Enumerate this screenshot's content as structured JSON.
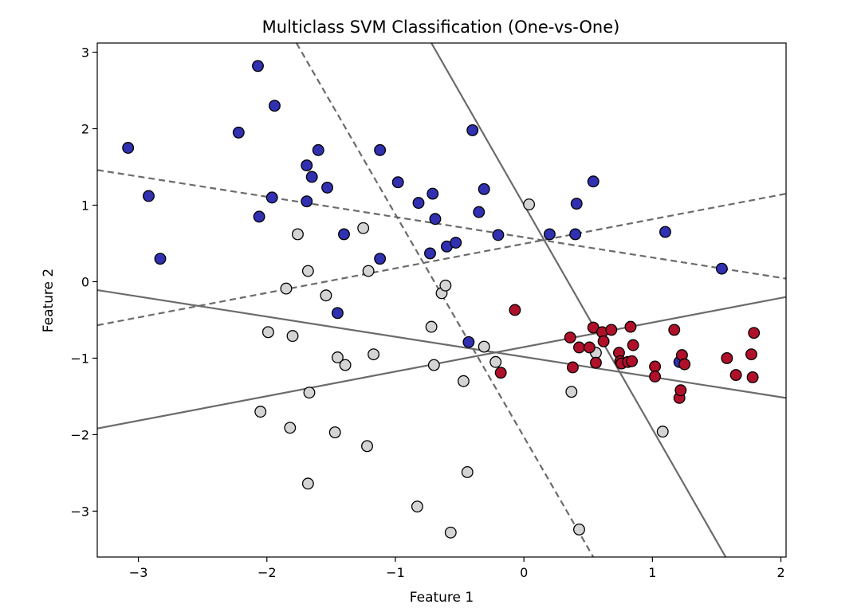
{
  "chart_data": {
    "type": "scatter",
    "title": "Multiclass SVM Classification (One-vs-One)",
    "xlabel": "Feature 1",
    "ylabel": "Feature 2",
    "xlim": [
      -3.32,
      2.04
    ],
    "ylim": [
      -3.6,
      3.12
    ],
    "xticks": [
      -3,
      -2,
      -1,
      0,
      1,
      2
    ],
    "yticks": [
      -3,
      -2,
      -1,
      0,
      1,
      2,
      3
    ],
    "xtick_labels": [
      "−3",
      "−2",
      "−1",
      "0",
      "1",
      "2"
    ],
    "ytick_labels": [
      "−3",
      "−2",
      "−1",
      "0",
      "1",
      "2",
      "3"
    ],
    "grid": false,
    "colors": {
      "class_0": "#3030b0",
      "class_1": "#d4d4d4",
      "class_2": "#b0102a",
      "edge": "#000000",
      "line": "#6b6b6b"
    },
    "series": [
      {
        "name": "class_0",
        "points": [
          [
            -2.07,
            2.82
          ],
          [
            -1.94,
            2.3
          ],
          [
            -3.08,
            1.75
          ],
          [
            -2.22,
            1.95
          ],
          [
            -2.92,
            1.12
          ],
          [
            -2.83,
            0.3
          ],
          [
            -2.06,
            0.85
          ],
          [
            -1.96,
            1.1
          ],
          [
            -1.69,
            1.52
          ],
          [
            -1.65,
            1.37
          ],
          [
            -1.6,
            1.72
          ],
          [
            -1.53,
            1.23
          ],
          [
            -1.69,
            1.05
          ],
          [
            -1.4,
            0.62
          ],
          [
            -1.12,
            1.72
          ],
          [
            -0.98,
            1.3
          ],
          [
            -0.82,
            1.03
          ],
          [
            -0.71,
            1.15
          ],
          [
            -0.69,
            0.82
          ],
          [
            -0.73,
            0.37
          ],
          [
            -0.6,
            0.46
          ],
          [
            -0.53,
            0.51
          ],
          [
            -0.35,
            0.91
          ],
          [
            -0.4,
            1.98
          ],
          [
            -0.31,
            1.21
          ],
          [
            -0.2,
            0.61
          ],
          [
            0.2,
            0.62
          ],
          [
            0.4,
            0.62
          ],
          [
            0.41,
            1.02
          ],
          [
            0.54,
            1.31
          ],
          [
            1.1,
            0.65
          ],
          [
            1.54,
            0.17
          ],
          [
            -1.12,
            0.3
          ],
          [
            -1.45,
            -0.41
          ],
          [
            -0.43,
            -0.79
          ],
          [
            1.21,
            -1.05
          ]
        ]
      },
      {
        "name": "class_1",
        "points": [
          [
            -1.76,
            0.62
          ],
          [
            -1.68,
            0.14
          ],
          [
            -1.85,
            -0.09
          ],
          [
            -1.99,
            -0.66
          ],
          [
            -1.8,
            -0.71
          ],
          [
            -1.54,
            -0.18
          ],
          [
            -1.25,
            0.7
          ],
          [
            -1.21,
            0.14
          ],
          [
            -0.64,
            -0.15
          ],
          [
            -0.61,
            -0.05
          ],
          [
            -0.72,
            -0.59
          ],
          [
            -1.45,
            -0.99
          ],
          [
            -1.39,
            -1.09
          ],
          [
            -1.17,
            -0.95
          ],
          [
            -0.7,
            -1.09
          ],
          [
            -1.67,
            -1.45
          ],
          [
            -2.05,
            -1.7
          ],
          [
            -1.82,
            -1.91
          ],
          [
            -1.47,
            -1.97
          ],
          [
            -1.22,
            -2.15
          ],
          [
            -1.68,
            -2.64
          ],
          [
            -0.83,
            -2.94
          ],
          [
            -0.57,
            -3.28
          ],
          [
            -0.44,
            -2.49
          ],
          [
            -0.47,
            -1.3
          ],
          [
            -0.31,
            -0.85
          ],
          [
            -0.22,
            -1.05
          ],
          [
            0.04,
            1.01
          ],
          [
            0.37,
            -1.44
          ],
          [
            0.56,
            -0.93
          ],
          [
            0.43,
            -3.24
          ],
          [
            1.08,
            -1.96
          ]
        ]
      },
      {
        "name": "class_2",
        "points": [
          [
            -0.07,
            -0.37
          ],
          [
            -0.18,
            -1.19
          ],
          [
            0.36,
            -0.73
          ],
          [
            0.38,
            -1.12
          ],
          [
            0.43,
            -0.86
          ],
          [
            0.51,
            -0.86
          ],
          [
            0.54,
            -0.6
          ],
          [
            0.56,
            -1.06
          ],
          [
            0.61,
            -0.66
          ],
          [
            0.62,
            -0.78
          ],
          [
            0.68,
            -0.63
          ],
          [
            0.74,
            -0.93
          ],
          [
            0.75,
            -1.04
          ],
          [
            0.76,
            -1.07
          ],
          [
            0.81,
            -1.05
          ],
          [
            0.83,
            -0.59
          ],
          [
            0.84,
            -1.04
          ],
          [
            0.85,
            -0.83
          ],
          [
            1.02,
            -1.11
          ],
          [
            1.02,
            -1.24
          ],
          [
            1.17,
            -0.63
          ],
          [
            1.21,
            -1.52
          ],
          [
            1.22,
            -1.42
          ],
          [
            1.23,
            -0.96
          ],
          [
            1.25,
            -1.08
          ],
          [
            1.58,
            -1.0
          ],
          [
            1.65,
            -1.22
          ],
          [
            1.77,
            -0.95
          ],
          [
            1.78,
            -1.25
          ],
          [
            1.79,
            -0.67
          ]
        ]
      }
    ],
    "decision_lines": [
      {
        "name": "solid-line-a",
        "style": "solid",
        "from": [
          -3.32,
          -0.11
        ],
        "to": [
          2.04,
          -1.52
        ]
      },
      {
        "name": "solid-line-b",
        "style": "solid",
        "from": [
          -3.32,
          -1.92
        ],
        "to": [
          2.04,
          -0.2
        ]
      },
      {
        "name": "solid-line-c",
        "style": "solid",
        "from": [
          -0.72,
          3.12
        ],
        "to": [
          1.57,
          -3.6
        ]
      },
      {
        "name": "dashed-line-a",
        "style": "dashed",
        "from": [
          -3.32,
          1.46
        ],
        "to": [
          2.04,
          0.04
        ]
      },
      {
        "name": "dashed-line-b",
        "style": "dashed",
        "from": [
          -3.32,
          -0.57
        ],
        "to": [
          2.04,
          1.15
        ]
      },
      {
        "name": "dashed-line-c",
        "style": "dashed",
        "from": [
          -1.77,
          3.12
        ],
        "to": [
          0.54,
          -3.6
        ]
      }
    ]
  }
}
